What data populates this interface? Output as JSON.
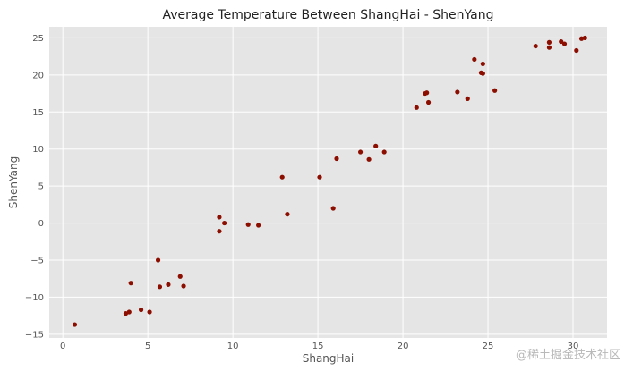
{
  "watermark": "@稀土掘金技术社区",
  "chart_data": {
    "type": "scatter",
    "title": "Average Temperature Between ShangHai - ShenYang",
    "xlabel": "ShangHai",
    "ylabel": "ShenYang",
    "xlim": [
      -0.8,
      32
    ],
    "ylim": [
      -15.5,
      26.5
    ],
    "xticks": [
      0,
      5,
      10,
      15,
      20,
      25,
      30
    ],
    "yticks": [
      -15,
      -10,
      -5,
      0,
      5,
      10,
      15,
      20,
      25
    ],
    "grid": true,
    "background": "#e5e5e5",
    "grid_color": "#ffffff",
    "marker_color": "#8b0e00",
    "points": [
      {
        "x": 0.7,
        "y": -13.7
      },
      {
        "x": 3.7,
        "y": -12.2
      },
      {
        "x": 3.9,
        "y": -12.0
      },
      {
        "x": 4.0,
        "y": -8.1
      },
      {
        "x": 4.6,
        "y": -11.7
      },
      {
        "x": 5.1,
        "y": -12.0
      },
      {
        "x": 5.6,
        "y": -5.0
      },
      {
        "x": 5.7,
        "y": -8.6
      },
      {
        "x": 6.2,
        "y": -8.3
      },
      {
        "x": 6.9,
        "y": -7.2
      },
      {
        "x": 7.1,
        "y": -8.5
      },
      {
        "x": 9.2,
        "y": 0.8
      },
      {
        "x": 9.2,
        "y": -1.1
      },
      {
        "x": 9.5,
        "y": 0.0
      },
      {
        "x": 10.9,
        "y": -0.2
      },
      {
        "x": 11.5,
        "y": -0.3
      },
      {
        "x": 12.9,
        "y": 6.2
      },
      {
        "x": 13.2,
        "y": 1.2
      },
      {
        "x": 15.1,
        "y": 6.2
      },
      {
        "x": 15.9,
        "y": 2.0
      },
      {
        "x": 16.1,
        "y": 8.7
      },
      {
        "x": 17.5,
        "y": 9.6
      },
      {
        "x": 18.0,
        "y": 8.6
      },
      {
        "x": 18.4,
        "y": 10.4
      },
      {
        "x": 18.9,
        "y": 9.6
      },
      {
        "x": 20.8,
        "y": 15.6
      },
      {
        "x": 21.3,
        "y": 17.5
      },
      {
        "x": 21.4,
        "y": 17.6
      },
      {
        "x": 21.5,
        "y": 16.3
      },
      {
        "x": 23.2,
        "y": 17.7
      },
      {
        "x": 23.8,
        "y": 16.8
      },
      {
        "x": 24.2,
        "y": 22.1
      },
      {
        "x": 24.6,
        "y": 20.3
      },
      {
        "x": 24.7,
        "y": 21.5
      },
      {
        "x": 24.7,
        "y": 20.2
      },
      {
        "x": 25.4,
        "y": 17.9
      },
      {
        "x": 27.8,
        "y": 23.9
      },
      {
        "x": 28.6,
        "y": 24.4
      },
      {
        "x": 28.6,
        "y": 23.7
      },
      {
        "x": 29.3,
        "y": 24.5
      },
      {
        "x": 29.5,
        "y": 24.2
      },
      {
        "x": 30.2,
        "y": 23.3
      },
      {
        "x": 30.5,
        "y": 24.9
      },
      {
        "x": 30.7,
        "y": 25.0
      }
    ]
  }
}
